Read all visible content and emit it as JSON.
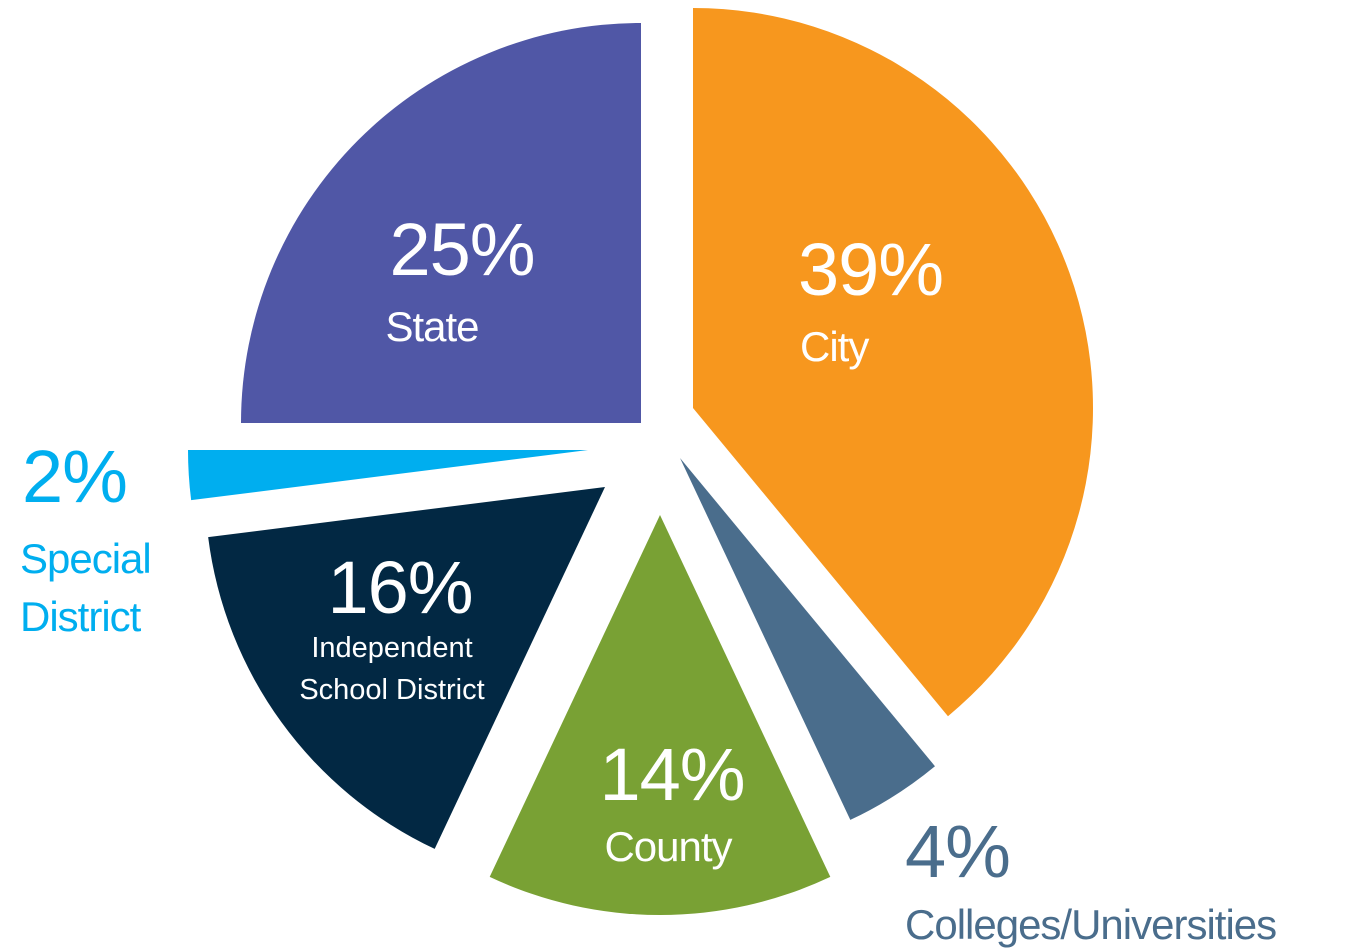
{
  "chart_data": {
    "type": "pie",
    "categories": [
      "City",
      "Colleges/Universities",
      "County",
      "Independent School District",
      "Special District",
      "State"
    ],
    "values": [
      39,
      4,
      14,
      16,
      2,
      25
    ],
    "value_labels": [
      "39%",
      "4%",
      "14%",
      "16%",
      "2%",
      "25%"
    ],
    "colors": [
      "#f7971e",
      "#4a6d8c",
      "#79a134",
      "#022843",
      "#00aeef",
      "#5057a6"
    ]
  }
}
